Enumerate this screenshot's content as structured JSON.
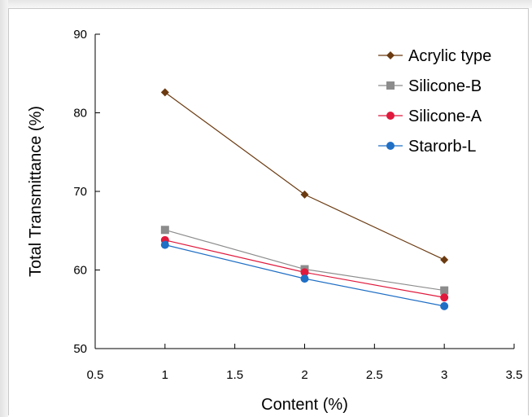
{
  "chart_data": {
    "type": "line",
    "title": "",
    "xlabel": "Content (%)",
    "ylabel": "Total Transmittance (%)",
    "xlim": [
      0.5,
      3.5
    ],
    "ylim": [
      50,
      90
    ],
    "xticks": [
      "0.5",
      "1",
      "1.5",
      "2",
      "2.5",
      "3",
      "3.5"
    ],
    "yticks": [
      "50",
      "60",
      "70",
      "80",
      "90"
    ],
    "grid": false,
    "legend_position": "top-right",
    "x": [
      1,
      2,
      3
    ],
    "series": [
      {
        "name": "Acrylic type",
        "values": [
          82.6,
          69.6,
          61.3
        ],
        "color": "#6b3a10",
        "marker": "diamond"
      },
      {
        "name": "Silicone-B",
        "values": [
          65.1,
          60.1,
          57.4
        ],
        "color": "#8c8c8c",
        "marker": "square"
      },
      {
        "name": "Silicone-A",
        "values": [
          63.8,
          59.7,
          56.5
        ],
        "color": "#e0193c",
        "marker": "circle"
      },
      {
        "name": "Starorb-L",
        "values": [
          63.2,
          58.9,
          55.4
        ],
        "color": "#1f6fc5",
        "marker": "circle"
      }
    ]
  }
}
